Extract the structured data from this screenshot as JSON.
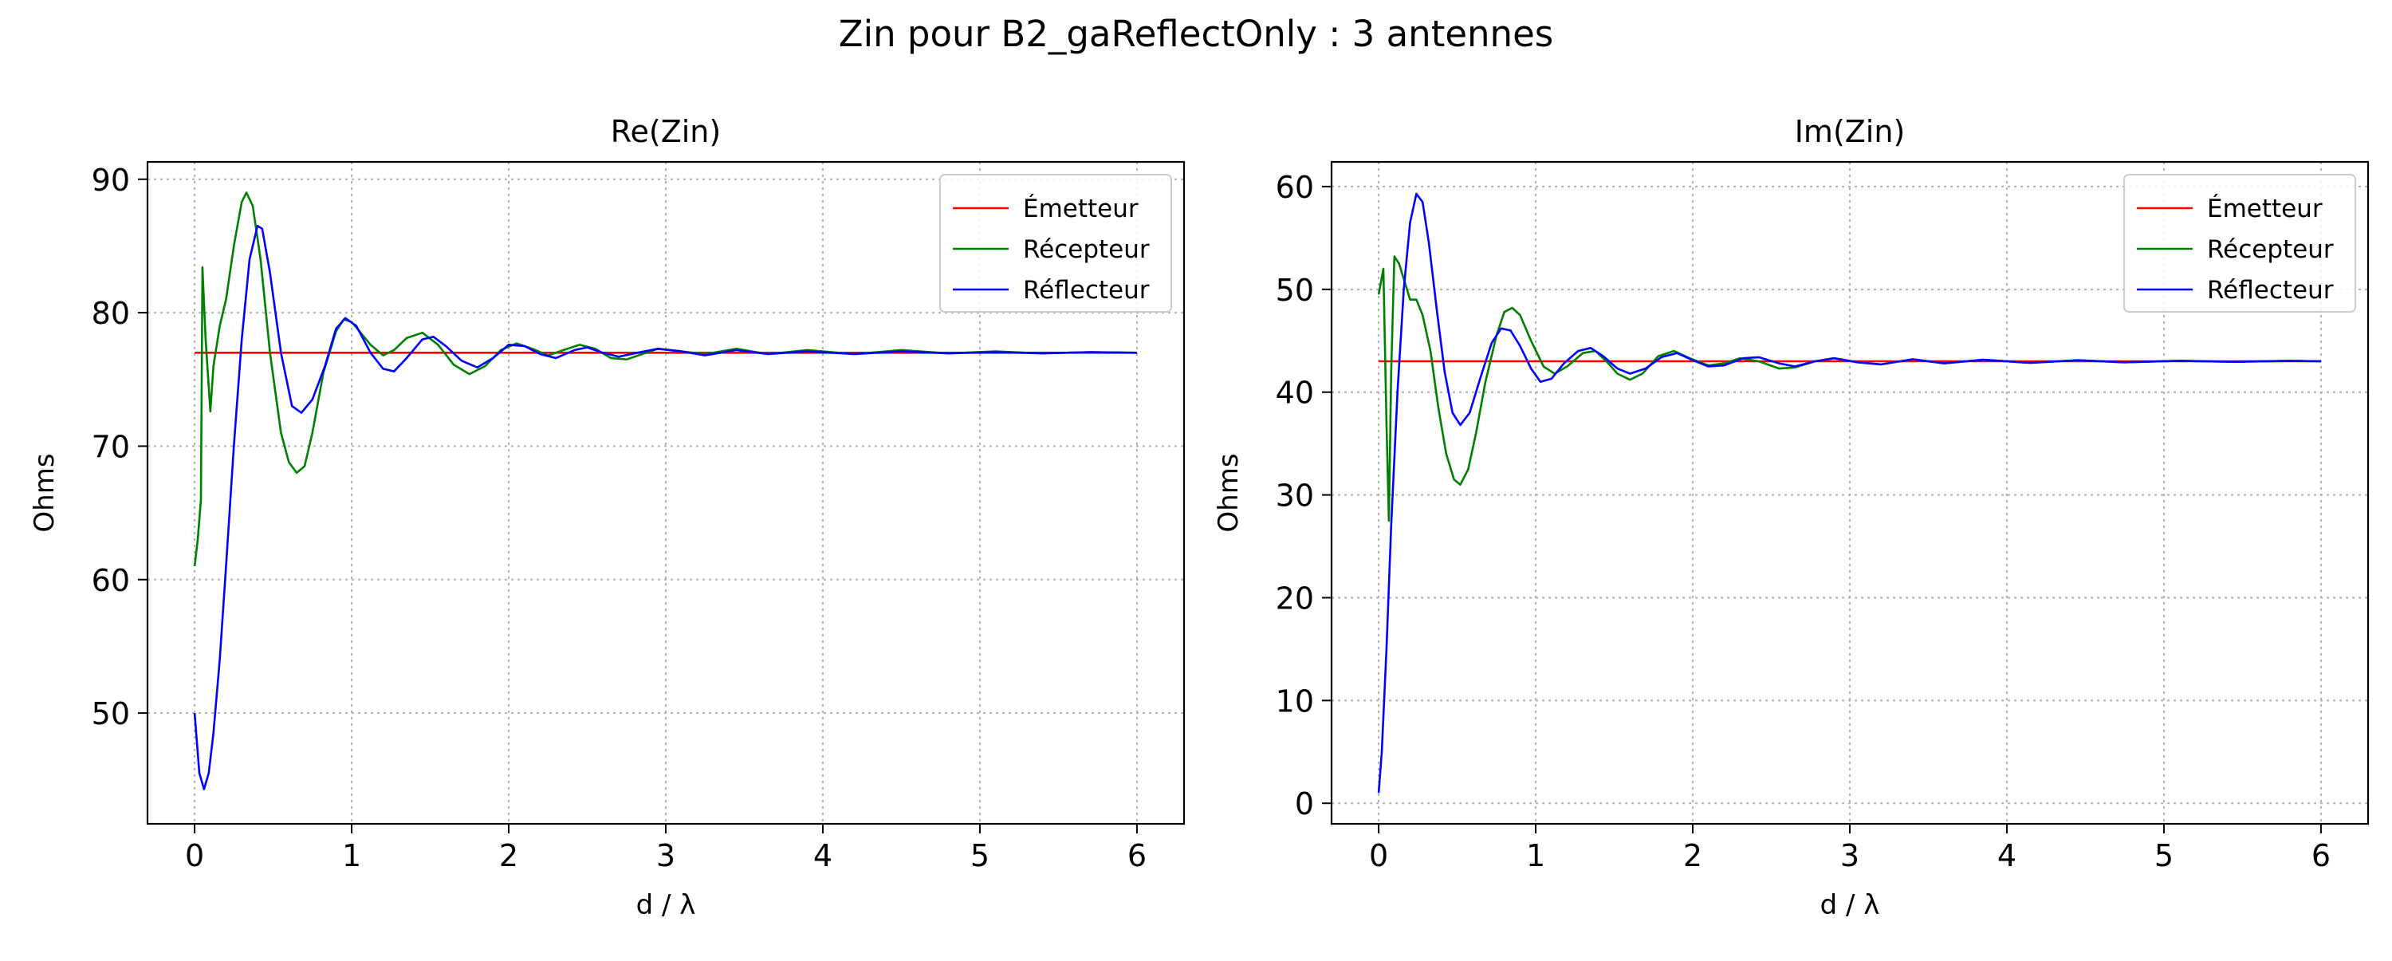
{
  "suptitle": "Zin pour B2_gaReflectOnly : 3 antennes",
  "chart_data": [
    {
      "type": "line",
      "title": "Re(Zin)",
      "xlabel": "d / λ",
      "ylabel": "Ohms",
      "xlim": [
        -0.3,
        6.3
      ],
      "ylim": [
        41.7,
        91.3
      ],
      "xticks": [
        0,
        1,
        2,
        3,
        4,
        5,
        6
      ],
      "yticks": [
        50,
        60,
        70,
        80,
        90
      ],
      "grid": true,
      "legend": "top-right",
      "series": [
        {
          "name": "Émetteur",
          "color": "#ff0000",
          "points": [
            [
              0.0,
              77.0
            ],
            [
              6.0,
              77.0
            ]
          ]
        },
        {
          "name": "Récepteur",
          "color": "#008000",
          "points": [
            [
              0.0,
              61.0
            ],
            [
              0.02,
              63.0
            ],
            [
              0.04,
              66.0
            ],
            [
              0.05,
              83.4
            ],
            [
              0.07,
              78.0
            ],
            [
              0.1,
              72.6
            ],
            [
              0.12,
              76.0
            ],
            [
              0.16,
              79.0
            ],
            [
              0.2,
              81.0
            ],
            [
              0.25,
              85.0
            ],
            [
              0.3,
              88.3
            ],
            [
              0.33,
              89.0
            ],
            [
              0.37,
              88.0
            ],
            [
              0.42,
              84.0
            ],
            [
              0.48,
              77.0
            ],
            [
              0.55,
              71.0
            ],
            [
              0.6,
              68.8
            ],
            [
              0.65,
              68.0
            ],
            [
              0.7,
              68.5
            ],
            [
              0.75,
              71.0
            ],
            [
              0.82,
              75.5
            ],
            [
              0.9,
              78.6
            ],
            [
              0.95,
              79.5
            ],
            [
              1.0,
              79.3
            ],
            [
              1.05,
              78.6
            ],
            [
              1.12,
              77.6
            ],
            [
              1.2,
              76.8
            ],
            [
              1.27,
              77.2
            ],
            [
              1.35,
              78.1
            ],
            [
              1.45,
              78.5
            ],
            [
              1.55,
              77.6
            ],
            [
              1.65,
              76.1
            ],
            [
              1.75,
              75.4
            ],
            [
              1.85,
              76.0
            ],
            [
              1.95,
              77.2
            ],
            [
              2.05,
              77.7
            ],
            [
              2.15,
              77.3
            ],
            [
              2.25,
              76.8
            ],
            [
              2.35,
              77.2
            ],
            [
              2.45,
              77.6
            ],
            [
              2.55,
              77.3
            ],
            [
              2.65,
              76.6
            ],
            [
              2.75,
              76.5
            ],
            [
              2.85,
              76.9
            ],
            [
              2.95,
              77.3
            ],
            [
              3.1,
              77.1
            ],
            [
              3.25,
              76.9
            ],
            [
              3.45,
              77.3
            ],
            [
              3.65,
              76.9
            ],
            [
              3.9,
              77.2
            ],
            [
              4.2,
              76.9
            ],
            [
              4.5,
              77.2
            ],
            [
              4.8,
              76.95
            ],
            [
              5.1,
              77.1
            ],
            [
              5.4,
              76.95
            ],
            [
              5.7,
              77.05
            ],
            [
              6.0,
              77.0
            ]
          ]
        },
        {
          "name": "Réflecteur",
          "color": "#0000ff",
          "points": [
            [
              0.0,
              50.0
            ],
            [
              0.03,
              45.5
            ],
            [
              0.06,
              44.3
            ],
            [
              0.09,
              45.5
            ],
            [
              0.12,
              48.5
            ],
            [
              0.16,
              54.0
            ],
            [
              0.2,
              61.0
            ],
            [
              0.25,
              70.0
            ],
            [
              0.3,
              78.0
            ],
            [
              0.35,
              84.0
            ],
            [
              0.4,
              86.5
            ],
            [
              0.43,
              86.3
            ],
            [
              0.48,
              83.0
            ],
            [
              0.55,
              77.0
            ],
            [
              0.62,
              73.0
            ],
            [
              0.68,
              72.5
            ],
            [
              0.75,
              73.5
            ],
            [
              0.83,
              76.0
            ],
            [
              0.9,
              78.8
            ],
            [
              0.96,
              79.6
            ],
            [
              1.03,
              79.0
            ],
            [
              1.12,
              77.0
            ],
            [
              1.2,
              75.8
            ],
            [
              1.27,
              75.6
            ],
            [
              1.35,
              76.6
            ],
            [
              1.45,
              78.0
            ],
            [
              1.52,
              78.2
            ],
            [
              1.6,
              77.5
            ],
            [
              1.7,
              76.4
            ],
            [
              1.8,
              75.9
            ],
            [
              1.9,
              76.6
            ],
            [
              2.0,
              77.6
            ],
            [
              2.1,
              77.5
            ],
            [
              2.2,
              76.9
            ],
            [
              2.3,
              76.6
            ],
            [
              2.42,
              77.2
            ],
            [
              2.5,
              77.4
            ],
            [
              2.6,
              77.0
            ],
            [
              2.7,
              76.7
            ],
            [
              2.82,
              77.0
            ],
            [
              2.95,
              77.3
            ],
            [
              3.1,
              77.1
            ],
            [
              3.25,
              76.8
            ],
            [
              3.45,
              77.2
            ],
            [
              3.65,
              76.9
            ],
            [
              3.9,
              77.1
            ],
            [
              4.2,
              76.9
            ],
            [
              4.5,
              77.1
            ],
            [
              4.8,
              76.95
            ],
            [
              5.1,
              77.05
            ],
            [
              5.4,
              76.95
            ],
            [
              5.7,
              77.05
            ],
            [
              6.0,
              77.0
            ]
          ]
        }
      ]
    },
    {
      "type": "line",
      "title": "Im(Zin)",
      "xlabel": "d / λ",
      "ylabel": "Ohms",
      "xlim": [
        -0.3,
        6.3
      ],
      "ylim": [
        -2.0,
        62.4
      ],
      "xticks": [
        0,
        1,
        2,
        3,
        4,
        5,
        6
      ],
      "yticks": [
        0,
        10,
        20,
        30,
        40,
        50,
        60
      ],
      "grid": true,
      "legend": "top-right",
      "series": [
        {
          "name": "Émetteur",
          "color": "#ff0000",
          "points": [
            [
              0.0,
              43.0
            ],
            [
              6.0,
              43.0
            ]
          ]
        },
        {
          "name": "Récepteur",
          "color": "#008000",
          "points": [
            [
              0.0,
              49.5
            ],
            [
              0.03,
              52.0
            ],
            [
              0.05,
              37.0
            ],
            [
              0.065,
              27.5
            ],
            [
              0.08,
              42.0
            ],
            [
              0.1,
              53.2
            ],
            [
              0.13,
              52.5
            ],
            [
              0.17,
              50.5
            ],
            [
              0.2,
              49.0
            ],
            [
              0.24,
              49.0
            ],
            [
              0.28,
              47.5
            ],
            [
              0.33,
              44.0
            ],
            [
              0.38,
              38.5
            ],
            [
              0.43,
              34.0
            ],
            [
              0.48,
              31.5
            ],
            [
              0.52,
              31.0
            ],
            [
              0.57,
              32.5
            ],
            [
              0.62,
              36.0
            ],
            [
              0.68,
              41.0
            ],
            [
              0.75,
              45.5
            ],
            [
              0.8,
              47.8
            ],
            [
              0.85,
              48.2
            ],
            [
              0.9,
              47.5
            ],
            [
              0.97,
              45.0
            ],
            [
              1.05,
              42.5
            ],
            [
              1.12,
              41.8
            ],
            [
              1.2,
              42.5
            ],
            [
              1.3,
              43.8
            ],
            [
              1.38,
              44.0
            ],
            [
              1.45,
              43.0
            ],
            [
              1.52,
              41.8
            ],
            [
              1.6,
              41.2
            ],
            [
              1.68,
              41.8
            ],
            [
              1.78,
              43.5
            ],
            [
              1.88,
              44.0
            ],
            [
              1.98,
              43.3
            ],
            [
              2.1,
              42.6
            ],
            [
              2.2,
              42.8
            ],
            [
              2.3,
              43.3
            ],
            [
              2.42,
              43.0
            ],
            [
              2.55,
              42.3
            ],
            [
              2.65,
              42.4
            ],
            [
              2.78,
              43.0
            ],
            [
              2.9,
              43.3
            ],
            [
              3.05,
              42.9
            ],
            [
              3.2,
              42.7
            ],
            [
              3.4,
              43.2
            ],
            [
              3.6,
              42.8
            ],
            [
              3.85,
              43.15
            ],
            [
              4.15,
              42.85
            ],
            [
              4.45,
              43.1
            ],
            [
              4.75,
              42.9
            ],
            [
              5.1,
              43.05
            ],
            [
              5.45,
              42.95
            ],
            [
              5.8,
              43.05
            ],
            [
              6.0,
              43.0
            ]
          ]
        },
        {
          "name": "Réflecteur",
          "color": "#0000ff",
          "points": [
            [
              0.0,
              1.0
            ],
            [
              0.02,
              5.0
            ],
            [
              0.05,
              15.0
            ],
            [
              0.08,
              27.0
            ],
            [
              0.12,
              40.0
            ],
            [
              0.16,
              50.0
            ],
            [
              0.2,
              56.5
            ],
            [
              0.24,
              59.3
            ],
            [
              0.28,
              58.5
            ],
            [
              0.32,
              54.5
            ],
            [
              0.37,
              48.0
            ],
            [
              0.42,
              42.0
            ],
            [
              0.47,
              38.0
            ],
            [
              0.52,
              36.8
            ],
            [
              0.58,
              38.0
            ],
            [
              0.65,
              41.5
            ],
            [
              0.72,
              44.8
            ],
            [
              0.78,
              46.2
            ],
            [
              0.84,
              46.0
            ],
            [
              0.9,
              44.5
            ],
            [
              0.97,
              42.3
            ],
            [
              1.03,
              41.0
            ],
            [
              1.1,
              41.3
            ],
            [
              1.18,
              42.8
            ],
            [
              1.27,
              44.0
            ],
            [
              1.35,
              44.3
            ],
            [
              1.43,
              43.5
            ],
            [
              1.52,
              42.3
            ],
            [
              1.6,
              41.8
            ],
            [
              1.7,
              42.3
            ],
            [
              1.8,
              43.4
            ],
            [
              1.9,
              43.8
            ],
            [
              2.0,
              43.1
            ],
            [
              2.1,
              42.5
            ],
            [
              2.2,
              42.6
            ],
            [
              2.32,
              43.3
            ],
            [
              2.42,
              43.4
            ],
            [
              2.55,
              42.8
            ],
            [
              2.65,
              42.5
            ],
            [
              2.78,
              43.0
            ],
            [
              2.9,
              43.3
            ],
            [
              3.05,
              42.9
            ],
            [
              3.2,
              42.7
            ],
            [
              3.4,
              43.2
            ],
            [
              3.6,
              42.8
            ],
            [
              3.85,
              43.15
            ],
            [
              4.15,
              42.85
            ],
            [
              4.45,
              43.1
            ],
            [
              4.75,
              42.9
            ],
            [
              5.1,
              43.05
            ],
            [
              5.45,
              42.95
            ],
            [
              5.8,
              43.05
            ],
            [
              6.0,
              43.0
            ]
          ]
        }
      ]
    }
  ]
}
